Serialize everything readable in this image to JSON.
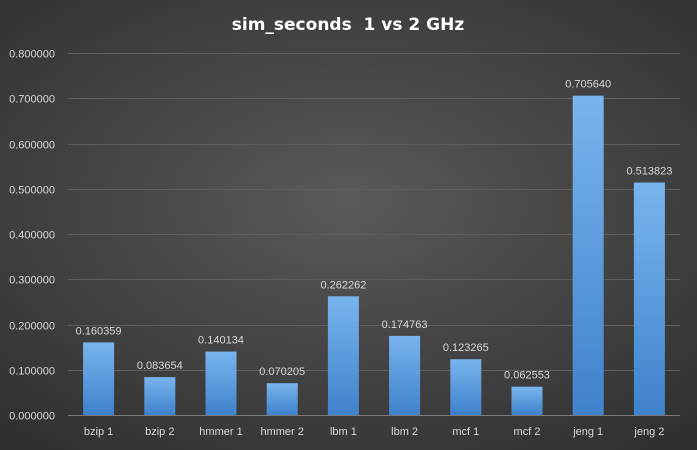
{
  "chart_data": {
    "type": "bar",
    "title": "sim_seconds  1 vs 2 GHz",
    "xlabel": "",
    "ylabel": "",
    "categories": [
      "bzip 1",
      "bzip 2",
      "hmmer 1",
      "hmmer 2",
      "lbm 1",
      "lbm 2",
      "mcf 1",
      "mcf 2",
      "jeng 1",
      "jeng 2"
    ],
    "values": [
      0.160359,
      0.083654,
      0.140134,
      0.070205,
      0.262262,
      0.174763,
      0.123265,
      0.062553,
      0.70564,
      0.513823
    ],
    "data_labels": [
      "0.160359",
      "0.083654",
      "0.140134",
      "0.070205",
      "0.262262",
      "0.174763",
      "0.123265",
      "0.062553",
      "0.705640",
      "0.513823"
    ],
    "ylim": [
      0,
      0.8
    ],
    "yticks": [
      0,
      0.1,
      0.2,
      0.3,
      0.4,
      0.5,
      0.6,
      0.7,
      0.8
    ],
    "ytick_labels": [
      "0.000000",
      "0.100000",
      "0.200000",
      "0.300000",
      "0.400000",
      "0.500000",
      "0.600000",
      "0.700000",
      "0.800000"
    ],
    "grid": true,
    "legend": "none",
    "colors": {
      "bar_top": "#79b4ee",
      "bar_bottom": "#3f82cc",
      "background": "#464646",
      "text": "#d8d8d8",
      "title": "#ffffff"
    }
  }
}
